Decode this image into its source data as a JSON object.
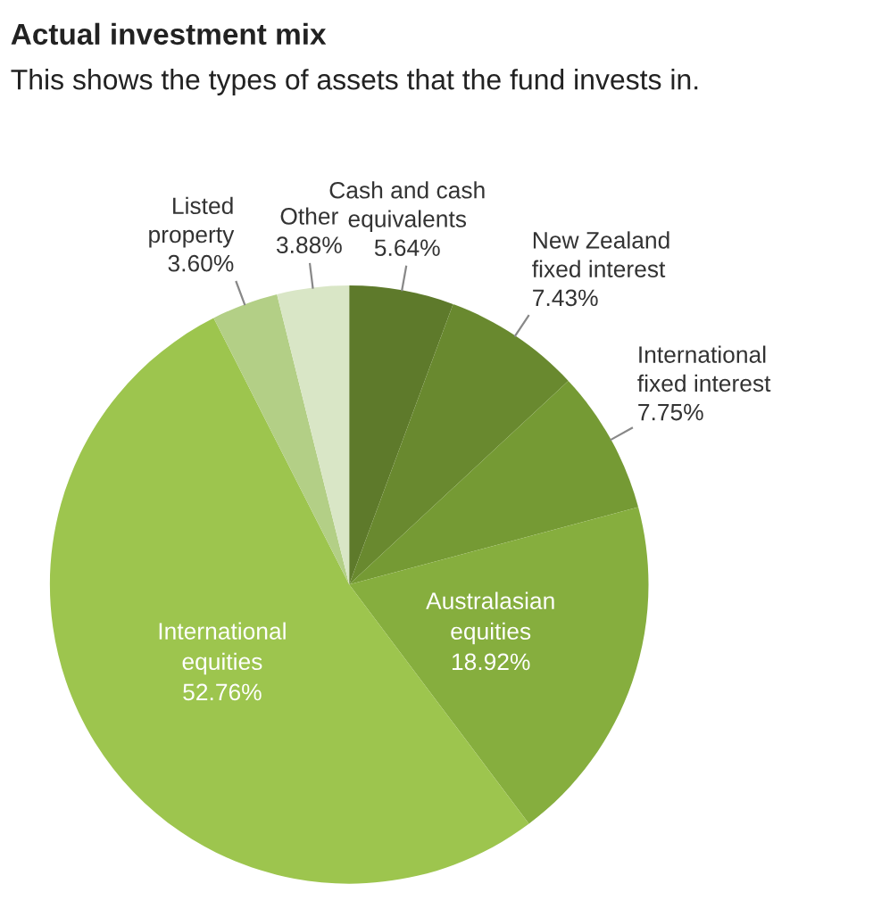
{
  "chart_data": {
    "type": "pie",
    "title": "Actual investment mix",
    "subtitle": "This shows the types of assets that the fund invests in.",
    "categories": [
      "Cash and cash\nequivalents",
      "New Zealand\nfixed interest",
      "International\nfixed interest",
      "Australasian\nequities",
      "International\nequities",
      "Listed\nproperty",
      "Other"
    ],
    "values": [
      5.64,
      7.43,
      7.75,
      18.92,
      52.76,
      3.6,
      3.88
    ],
    "value_labels": [
      "5.64%",
      "7.43%",
      "7.75%",
      "18.92%",
      "52.76%",
      "3.60%",
      "3.88%"
    ],
    "colors": [
      "#5e7a2b",
      "#69892f",
      "#759a34",
      "#86ae3e",
      "#9dc54e",
      "#b3cf86",
      "#d9e6c6"
    ]
  }
}
